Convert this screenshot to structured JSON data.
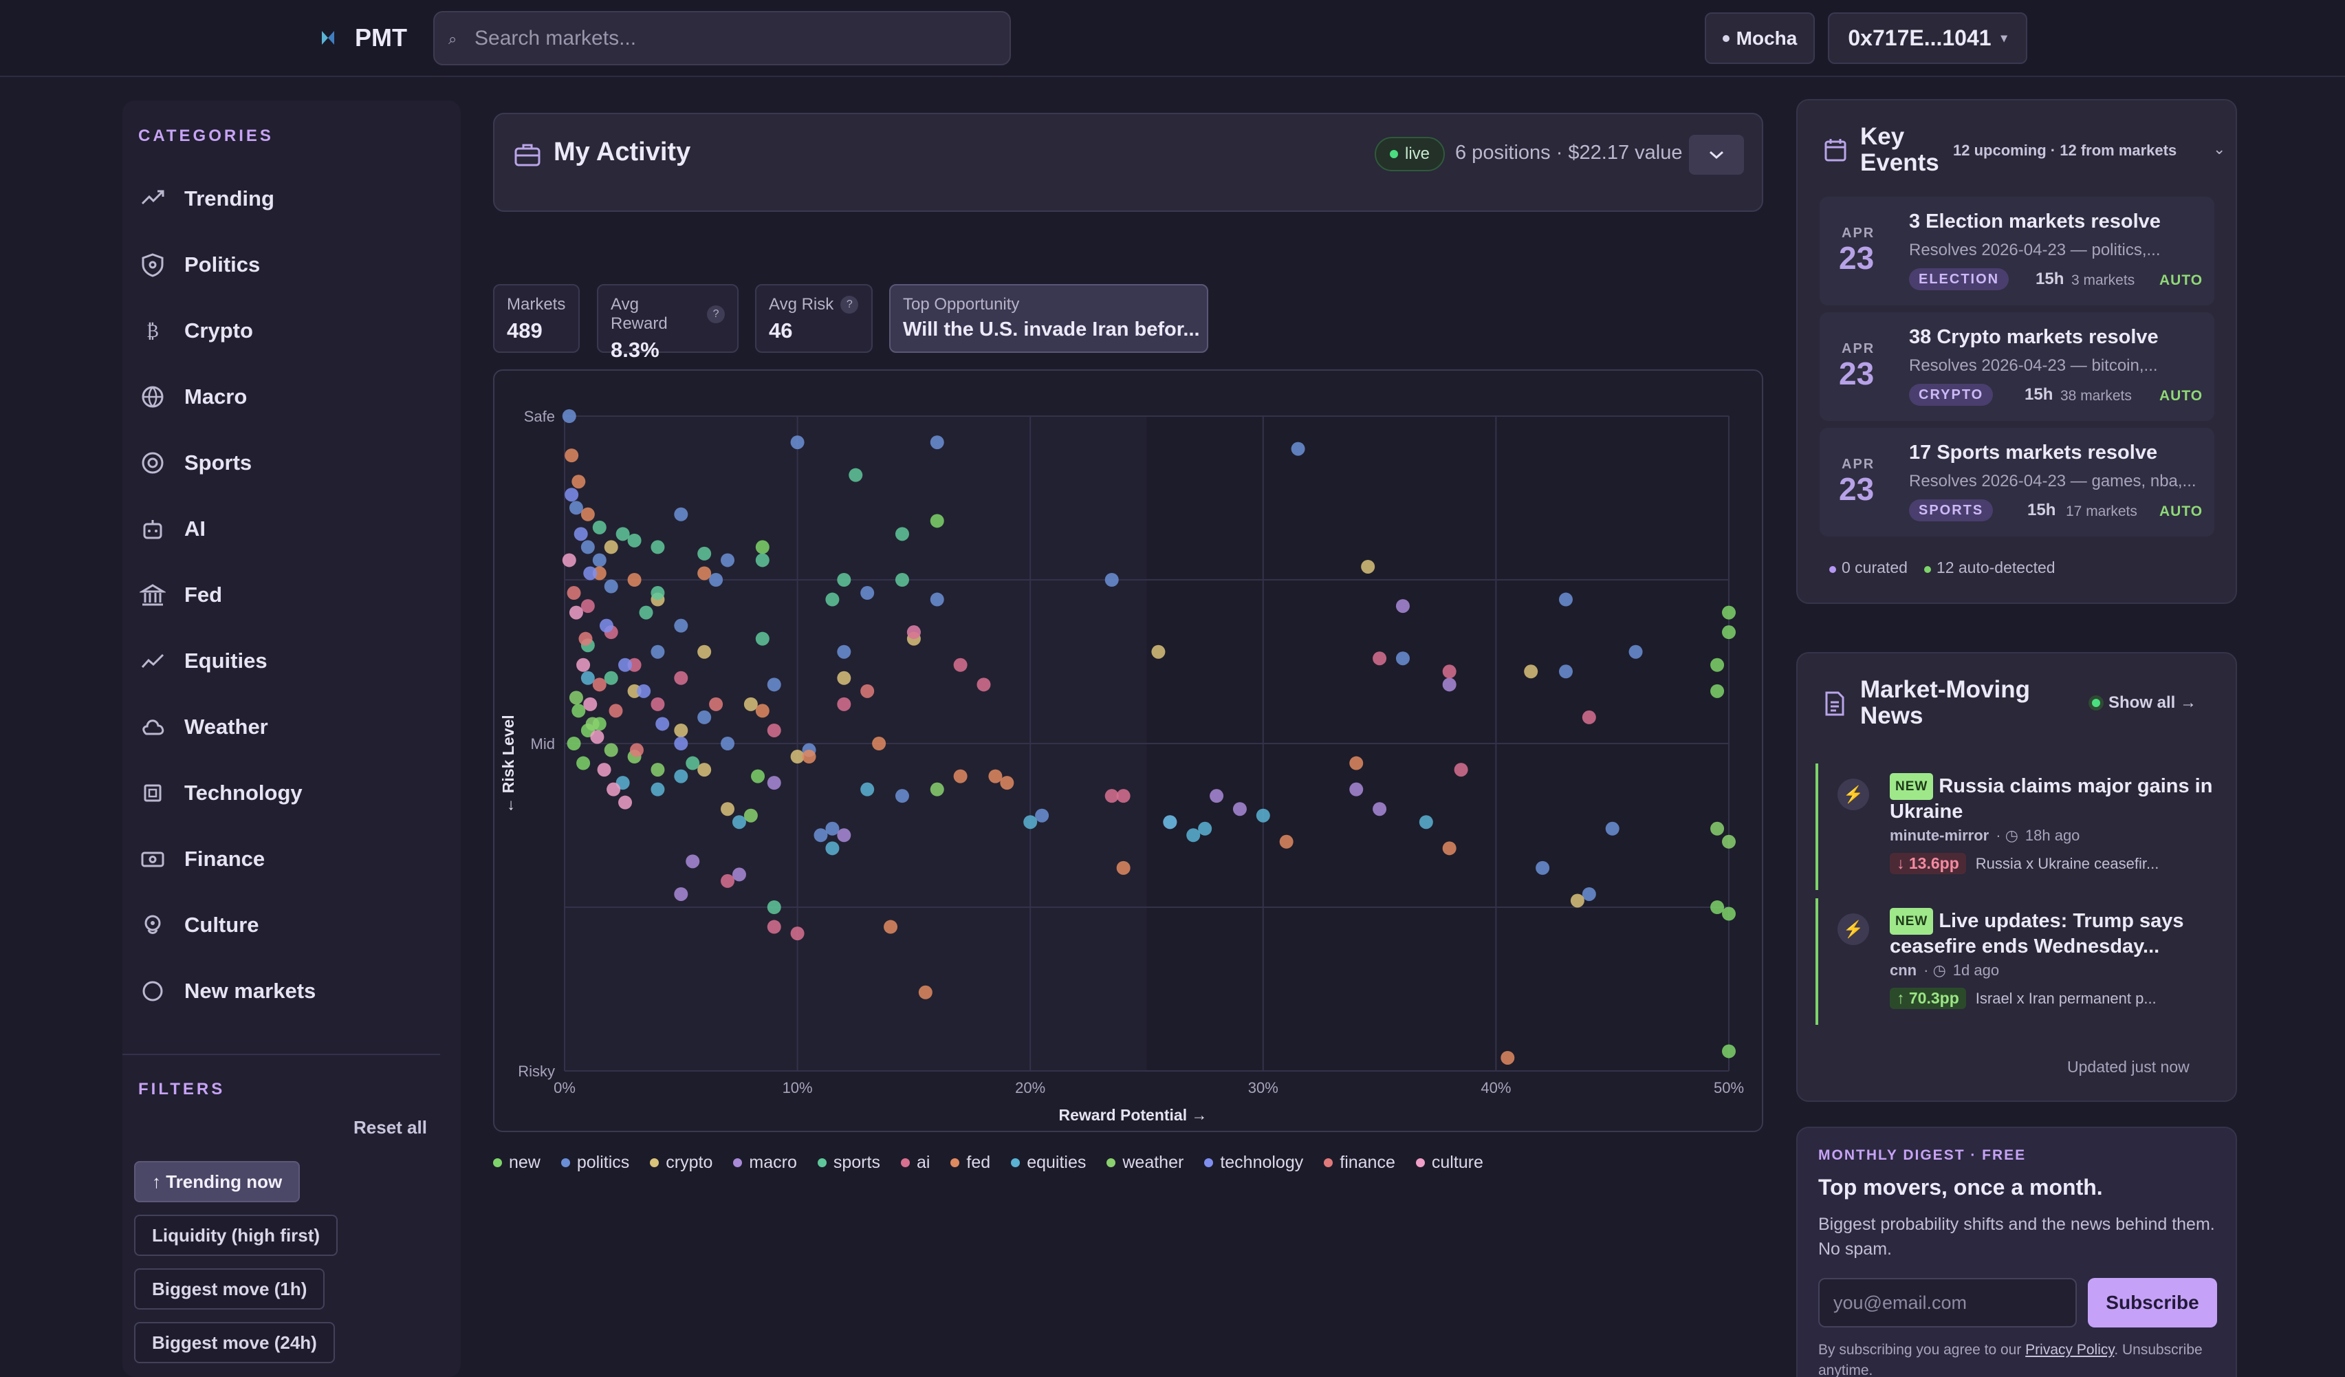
{
  "header": {
    "logo_text": "PMT",
    "search_placeholder": "Search markets...",
    "network_label": "Mocha",
    "wallet_label": "0x717E...1041"
  },
  "sidebar": {
    "categories_label": "CATEGORIES",
    "categories": [
      {
        "label": "Trending",
        "icon": "trending-up-icon"
      },
      {
        "label": "Politics",
        "icon": "shield-icon"
      },
      {
        "label": "Crypto",
        "icon": "bitcoin-icon"
      },
      {
        "label": "Macro",
        "icon": "globe-icon"
      },
      {
        "label": "Sports",
        "icon": "target-icon"
      },
      {
        "label": "AI",
        "icon": "robot-icon"
      },
      {
        "label": "Fed",
        "icon": "bank-icon"
      },
      {
        "label": "Equities",
        "icon": "chart-line-icon"
      },
      {
        "label": "Weather",
        "icon": "cloud-icon"
      },
      {
        "label": "Technology",
        "icon": "chip-icon"
      },
      {
        "label": "Finance",
        "icon": "banknote-icon"
      },
      {
        "label": "Culture",
        "icon": "culture-icon"
      },
      {
        "label": "New markets",
        "icon": "circle-icon"
      }
    ],
    "filters_label": "FILTERS",
    "reset_all": "Reset all",
    "filters": [
      {
        "label": "↑ Trending now",
        "active": true
      },
      {
        "label": "Liquidity (high first)",
        "active": false
      },
      {
        "label": "Biggest move (1h)",
        "active": false
      },
      {
        "label": "Biggest move (24h)",
        "active": false
      }
    ]
  },
  "activity": {
    "title": "My Activity",
    "live_label": "live",
    "summary": "6 positions · $22.17 value"
  },
  "stats": {
    "markets": {
      "label": "Markets",
      "value": "489"
    },
    "avg_reward": {
      "label": "Avg Reward",
      "value": "8.3%",
      "help": "?"
    },
    "avg_risk": {
      "label": "Avg Risk",
      "value": "46",
      "help": "?"
    },
    "top_opportunity": {
      "label": "Top Opportunity",
      "value": "Will the U.S. invade Iran befor..."
    }
  },
  "chart_data": {
    "type": "scatter",
    "xlabel": "Reward Potential →",
    "ylabel": "← Risk Level",
    "x_ticks": [
      "0%",
      "10%",
      "20%",
      "30%",
      "40%",
      "50%"
    ],
    "y_ticks": [
      "Safe",
      "Mid",
      "Risky"
    ],
    "xlim": [
      0,
      50
    ],
    "ylim": [
      0,
      100
    ],
    "y_orientation": "Safe at top, Risky at bottom",
    "grid": true,
    "legend_position": "bottom",
    "series": [
      {
        "name": "new",
        "color": "#7ed46a",
        "points": [
          [
            0.4,
            50
          ],
          [
            0.6,
            55
          ],
          [
            0.8,
            47
          ],
          [
            1.0,
            52
          ],
          [
            1.5,
            53
          ],
          [
            8.3,
            45
          ],
          [
            8.5,
            80
          ],
          [
            16,
            84
          ],
          [
            49.5,
            25
          ],
          [
            50,
            24
          ],
          [
            50,
            70
          ],
          [
            49.5,
            58
          ],
          [
            50,
            3
          ],
          [
            49.5,
            62
          ],
          [
            50,
            67
          ]
        ]
      },
      {
        "name": "politics",
        "color": "#6b8fd6",
        "points": [
          [
            0.2,
            100
          ],
          [
            0.5,
            86
          ],
          [
            1.0,
            80
          ],
          [
            1.5,
            78
          ],
          [
            2,
            74
          ],
          [
            5,
            85
          ],
          [
            10,
            96
          ],
          [
            16,
            96
          ],
          [
            31.5,
            95
          ],
          [
            23.5,
            75
          ],
          [
            36,
            63
          ],
          [
            43,
            72
          ],
          [
            43,
            61
          ],
          [
            46,
            64
          ],
          [
            45,
            37
          ],
          [
            42,
            31
          ],
          [
            44,
            27
          ],
          [
            6,
            54
          ],
          [
            7,
            50
          ],
          [
            9,
            59
          ],
          [
            12,
            64
          ],
          [
            15,
            67
          ],
          [
            13,
            73
          ],
          [
            4,
            64
          ],
          [
            5,
            68
          ],
          [
            16,
            72
          ],
          [
            7,
            78
          ],
          [
            6.5,
            75
          ],
          [
            10.5,
            49
          ],
          [
            11,
            36
          ],
          [
            11.5,
            37
          ],
          [
            14.5,
            42
          ],
          [
            20.5,
            39
          ]
        ]
      },
      {
        "name": "crypto",
        "color": "#d9c27a",
        "points": [
          [
            2,
            80
          ],
          [
            4,
            72
          ],
          [
            6,
            64
          ],
          [
            8,
            56
          ],
          [
            10,
            48
          ],
          [
            12,
            60
          ],
          [
            15,
            66
          ],
          [
            25.5,
            64
          ],
          [
            34.5,
            77
          ],
          [
            41.5,
            61
          ],
          [
            43.5,
            26
          ],
          [
            3,
            58
          ],
          [
            5,
            52
          ],
          [
            6,
            46
          ],
          [
            7,
            40
          ]
        ]
      },
      {
        "name": "macro",
        "color": "#a98ad8",
        "points": [
          [
            5.5,
            32
          ],
          [
            5,
            27
          ],
          [
            7.5,
            30
          ],
          [
            9,
            44
          ],
          [
            12,
            36
          ],
          [
            28,
            42
          ],
          [
            29,
            40
          ],
          [
            34,
            43
          ],
          [
            36,
            71
          ],
          [
            38,
            59
          ],
          [
            26,
            38
          ],
          [
            35,
            40
          ]
        ]
      },
      {
        "name": "sports",
        "color": "#5fc89a",
        "points": [
          [
            1.5,
            83
          ],
          [
            2.5,
            82
          ],
          [
            3,
            81
          ],
          [
            4,
            80
          ],
          [
            6,
            79
          ],
          [
            8.5,
            78
          ],
          [
            11.5,
            72
          ],
          [
            12.5,
            91
          ],
          [
            14.5,
            75
          ],
          [
            14.5,
            82
          ],
          [
            12,
            75
          ],
          [
            4,
            73
          ],
          [
            2,
            60
          ],
          [
            1,
            65
          ],
          [
            3.5,
            70
          ],
          [
            5.5,
            47
          ],
          [
            8.5,
            66
          ],
          [
            9,
            25
          ]
        ]
      },
      {
        "name": "ai",
        "color": "#d87090",
        "points": [
          [
            1,
            71
          ],
          [
            2,
            67
          ],
          [
            3,
            62
          ],
          [
            4,
            56
          ],
          [
            5,
            60
          ],
          [
            9,
            52
          ],
          [
            12,
            56
          ],
          [
            18,
            59
          ],
          [
            23.5,
            42
          ],
          [
            24,
            42
          ],
          [
            35,
            63
          ],
          [
            38,
            61
          ],
          [
            38.5,
            46
          ],
          [
            44,
            54
          ],
          [
            9,
            22
          ],
          [
            10,
            21
          ],
          [
            7,
            29
          ],
          [
            15,
            67
          ],
          [
            17,
            62
          ]
        ]
      },
      {
        "name": "fed",
        "color": "#e08a60",
        "points": [
          [
            0.3,
            94
          ],
          [
            0.6,
            90
          ],
          [
            1,
            85
          ],
          [
            1.5,
            76
          ],
          [
            3,
            75
          ],
          [
            6,
            76
          ],
          [
            8.5,
            55
          ],
          [
            10.5,
            48
          ],
          [
            13.5,
            50
          ],
          [
            15.5,
            12
          ],
          [
            17,
            45
          ],
          [
            18.5,
            45
          ],
          [
            24,
            31
          ],
          [
            31,
            35
          ],
          [
            34,
            47
          ],
          [
            38,
            34
          ],
          [
            40.5,
            2
          ],
          [
            14,
            22
          ],
          [
            19,
            44
          ]
        ]
      },
      {
        "name": "equities",
        "color": "#5ab3d4",
        "points": [
          [
            1,
            60
          ],
          [
            2.5,
            44
          ],
          [
            4,
            43
          ],
          [
            5,
            45
          ],
          [
            7.5,
            38
          ],
          [
            11.5,
            34
          ],
          [
            20,
            38
          ],
          [
            26,
            38
          ],
          [
            27,
            36
          ],
          [
            27.5,
            37
          ],
          [
            30,
            39
          ],
          [
            37,
            38
          ],
          [
            13,
            43
          ]
        ]
      },
      {
        "name": "weather",
        "color": "#8ad16e",
        "points": [
          [
            0.5,
            57
          ],
          [
            1.2,
            53
          ],
          [
            2,
            49
          ],
          [
            3,
            48
          ],
          [
            4,
            46
          ],
          [
            8,
            39
          ],
          [
            16,
            43
          ],
          [
            49.5,
            37
          ],
          [
            50,
            35
          ]
        ]
      },
      {
        "name": "technology",
        "color": "#7f8ff0",
        "points": [
          [
            0.3,
            88
          ],
          [
            0.7,
            82
          ],
          [
            1.1,
            76
          ],
          [
            1.8,
            68
          ],
          [
            2.6,
            62
          ],
          [
            3.4,
            58
          ],
          [
            4.2,
            53
          ],
          [
            5,
            50
          ]
        ]
      },
      {
        "name": "finance",
        "color": "#e07a7a",
        "points": [
          [
            0.4,
            73
          ],
          [
            0.9,
            66
          ],
          [
            1.5,
            59
          ],
          [
            2.2,
            55
          ],
          [
            3.1,
            49
          ],
          [
            6.5,
            56
          ],
          [
            13,
            58
          ]
        ]
      },
      {
        "name": "culture",
        "color": "#f0a0c8",
        "points": [
          [
            0.2,
            78
          ],
          [
            0.5,
            70
          ],
          [
            0.8,
            62
          ],
          [
            1.1,
            56
          ],
          [
            1.4,
            51
          ],
          [
            1.7,
            46
          ],
          [
            2.1,
            43
          ],
          [
            2.6,
            41
          ]
        ]
      }
    ]
  },
  "events": {
    "title": "Key Events",
    "meta": "12 upcoming · 12 from markets",
    "items": [
      {
        "month": "APR",
        "day": "23",
        "title": "3 Election markets resolve",
        "sub": "Resolves 2026-04-23 — politics,...",
        "tag": "ELECTION",
        "time": "15h",
        "count": "3 markets",
        "auto": "AUTO"
      },
      {
        "month": "APR",
        "day": "23",
        "title": "38 Crypto markets resolve",
        "sub": "Resolves 2026-04-23 — bitcoin,...",
        "tag": "CRYPTO",
        "time": "15h",
        "count": "38 markets",
        "auto": "AUTO"
      },
      {
        "month": "APR",
        "day": "23",
        "title": "17 Sports markets resolve",
        "sub": "Resolves 2026-04-23 — games, nba,...",
        "tag": "SPORTS",
        "time": "15h",
        "count": "17 markets",
        "auto": "AUTO"
      }
    ],
    "curated": "0 curated",
    "auto_detected": "12 auto-detected"
  },
  "news": {
    "title": "Market-Moving News",
    "show_all": "Show all →",
    "new_badge": "NEW",
    "items": [
      {
        "headline": "Russia claims major gains in Ukraine",
        "source": "minute-mirror",
        "ago": "18h ago",
        "move": "↓ 13.6pp",
        "direction": "down",
        "market": "Russia x Ukraine ceasefir..."
      },
      {
        "headline": "Live updates: Trump says ceasefire ends Wednesday...",
        "source": "cnn",
        "ago": "1d ago",
        "move": "↑ 70.3pp",
        "direction": "up",
        "market": "Israel x Iran permanent p..."
      }
    ],
    "updated": "Updated just now"
  },
  "digest": {
    "kicker": "MONTHLY DIGEST · FREE",
    "title": "Top movers, once a month.",
    "desc": "Biggest probability shifts and the news behind them. No spam.",
    "email_placeholder": "you@email.com",
    "button": "Subscribe",
    "legal_prefix": "By subscribing you agree to our ",
    "legal_link": "Privacy Policy",
    "legal_suffix": ". Unsubscribe anytime."
  }
}
